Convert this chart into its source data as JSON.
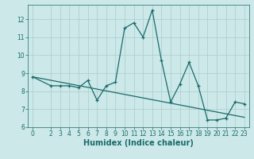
{
  "xlabel": "Humidex (Indice chaleur)",
  "background_color": "#cce8e8",
  "line_color": "#1a6b6b",
  "x_data": [
    0,
    2,
    3,
    4,
    5,
    6,
    7,
    8,
    9,
    10,
    11,
    12,
    13,
    14,
    15,
    16,
    17,
    18,
    19,
    20,
    21,
    22,
    23
  ],
  "y_data": [
    8.8,
    8.3,
    8.3,
    8.3,
    8.2,
    8.6,
    7.5,
    8.3,
    8.5,
    11.5,
    11.8,
    11.0,
    12.5,
    9.7,
    7.4,
    8.4,
    9.6,
    8.3,
    6.4,
    6.4,
    6.5,
    7.4,
    7.3
  ],
  "trend_x": [
    0,
    23
  ],
  "trend_y": [
    8.8,
    6.55
  ],
  "ylim": [
    6,
    12.8
  ],
  "xlim": [
    -0.5,
    23.5
  ],
  "yticks": [
    6,
    7,
    8,
    9,
    10,
    11,
    12
  ],
  "xticks": [
    0,
    2,
    3,
    4,
    5,
    6,
    7,
    8,
    9,
    10,
    11,
    12,
    13,
    14,
    15,
    16,
    17,
    18,
    19,
    20,
    21,
    22,
    23
  ],
  "grid_color": "#aacccc",
  "tick_fontsize": 5.5,
  "label_fontsize": 7
}
